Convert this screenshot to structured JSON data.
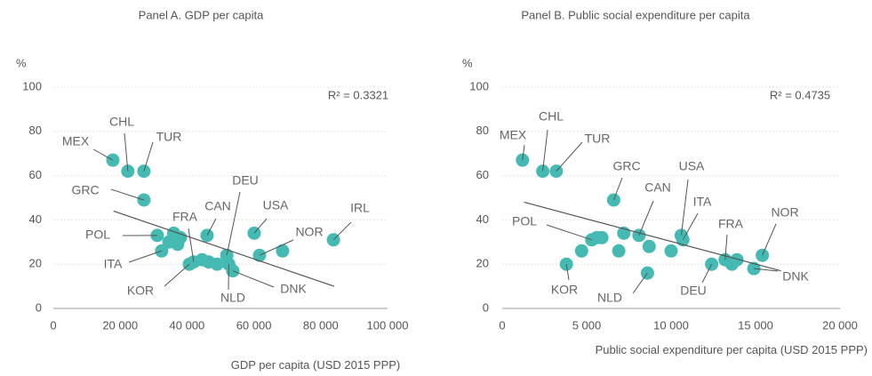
{
  "chart_data": [
    {
      "type": "scatter",
      "title": "Panel A. GDP per capita",
      "y_label": "%",
      "x_label": "GDP per capita (USD 2015 PPP)",
      "annotation": "R² = 0.3321",
      "color": "#45bab3",
      "grid": true,
      "xlim": [
        0,
        100000
      ],
      "xticks": [
        0,
        {
          "value": 20000,
          "label": "20 000"
        },
        {
          "value": 40000,
          "label": "40 000"
        },
        {
          "value": 60000,
          "label": "60 000"
        },
        {
          "value": 80000,
          "label": "80 000"
        },
        {
          "value": 100000,
          "label": "100 000"
        }
      ],
      "ylim": [
        0,
        100
      ],
      "yticks": [
        0,
        20,
        40,
        60,
        80,
        100
      ],
      "x": [
        17800,
        22300,
        27100,
        27100,
        31100,
        32400,
        34600,
        36000,
        37200,
        38000,
        40700,
        42000,
        44500,
        46500,
        46000,
        49000,
        51900,
        52500,
        53700,
        60100,
        61700,
        68600,
        83800
      ],
      "values": [
        67,
        62,
        62,
        49,
        33,
        26,
        30,
        34,
        29,
        32,
        20,
        21,
        22,
        21,
        33,
        20,
        24,
        20,
        17,
        34,
        24,
        26,
        31
      ],
      "point_labels": [
        "MEX",
        "CHL",
        "TUR",
        "GRC",
        "POL",
        "ITA",
        null,
        null,
        null,
        null,
        "KOR",
        "FRA",
        null,
        null,
        "CAN",
        null,
        "DEU",
        "NLD",
        "DNK",
        "USA",
        "NOR",
        null,
        "IRL"
      ],
      "trendline": {
        "x": [
          18000,
          84000
        ],
        "y": [
          44,
          10
        ]
      }
    },
    {
      "type": "scatter",
      "title": "Panel B. Public social expenditure per capita",
      "y_label": "%",
      "x_label": "Public social expenditure per capita (USD 2015 PPP)",
      "annotation": "R² = 0.4735",
      "color": "#45bab3",
      "grid": true,
      "xlim": [
        0,
        20000
      ],
      "xticks": [
        0,
        {
          "value": 5000,
          "label": "5 000"
        },
        {
          "value": 10000,
          "label": "10 000"
        },
        {
          "value": 15000,
          "label": "15 000"
        },
        {
          "value": 20000,
          "label": "20 000"
        }
      ],
      "ylim": [
        0,
        100
      ],
      "yticks": [
        0,
        20,
        40,
        60,
        80,
        100
      ],
      "x": [
        1200,
        2400,
        3200,
        6600,
        5300,
        5600,
        5900,
        3800,
        4700,
        7200,
        6900,
        8100,
        8700,
        8600,
        10000,
        10600,
        10700,
        12400,
        13200,
        13600,
        13900,
        14900,
        15400
      ],
      "values": [
        67,
        62,
        62,
        49,
        31,
        32,
        32,
        20,
        26,
        34,
        26,
        33,
        28,
        16,
        26,
        33,
        31,
        20,
        22,
        20,
        22,
        18,
        24
      ],
      "point_labels": [
        "MEX",
        "CHL",
        "TUR",
        "GRC",
        "POL",
        null,
        null,
        "KOR",
        null,
        null,
        null,
        "CAN",
        null,
        "NLD",
        null,
        "USA",
        "ITA",
        "DEU",
        "FRA",
        null,
        null,
        "DNK",
        "NOR"
      ],
      "trendline": {
        "x": [
          1300,
          16500
        ],
        "y": [
          48,
          17
        ]
      }
    }
  ]
}
